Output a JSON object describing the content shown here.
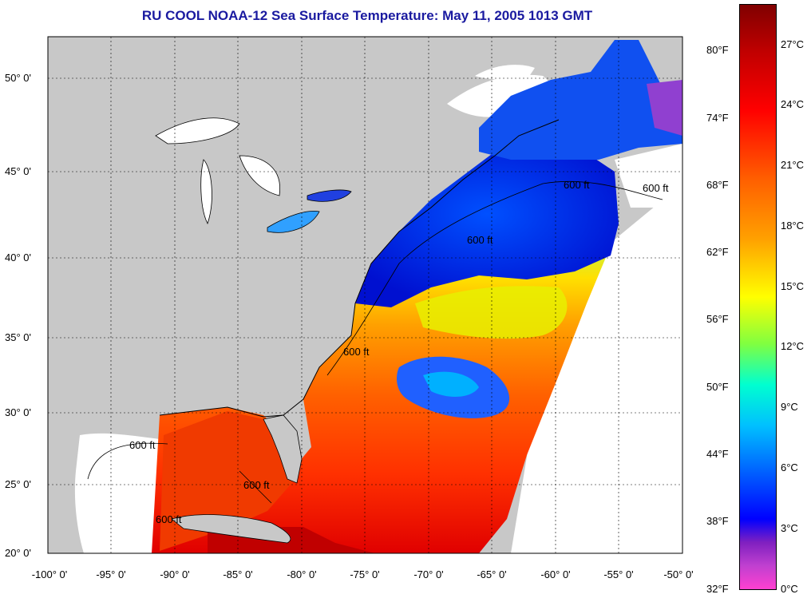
{
  "title": "RU COOL  NOAA-12  Sea Surface Temperature:  May 11, 2005 1013 GMT",
  "map": {
    "lat_labels": [
      "50° 0'",
      "45° 0'",
      "40° 0'",
      "35° 0'",
      "30° 0'",
      "25° 0'",
      "20° 0'"
    ],
    "lon_labels": [
      "-100° 0'",
      "-95° 0'",
      "-90° 0'",
      "-85° 0'",
      "-80° 0'",
      "-75° 0'",
      "-70° 0'",
      "-65° 0'",
      "-60° 0'",
      "-55° 0'",
      "-50° 0'"
    ],
    "contour_labels": [
      "600 ft",
      "600 ft",
      "600 ft",
      "600 ft",
      "600 ft",
      "600 ft",
      "600 ft"
    ],
    "land_color": "#c8c8c8",
    "no_data_color": "#ffffff",
    "grid": "dotted"
  },
  "colorbar": {
    "fahrenheit": [
      "80°F",
      "74°F",
      "68°F",
      "62°F",
      "56°F",
      "50°F",
      "44°F",
      "38°F",
      "32°F"
    ],
    "celsius": [
      "27°C",
      "24°C",
      "21°C",
      "18°C",
      "15°C",
      "12°C",
      "9°C",
      "6°C",
      "3°C",
      "0°C"
    ],
    "range_c": [
      0,
      28.5
    ],
    "colors": [
      "#800000",
      "#ff0000",
      "#ffa000",
      "#ffff00",
      "#00ffd0",
      "#0060ff",
      "#0000ff",
      "#8020c0",
      "#ff40d0"
    ]
  }
}
